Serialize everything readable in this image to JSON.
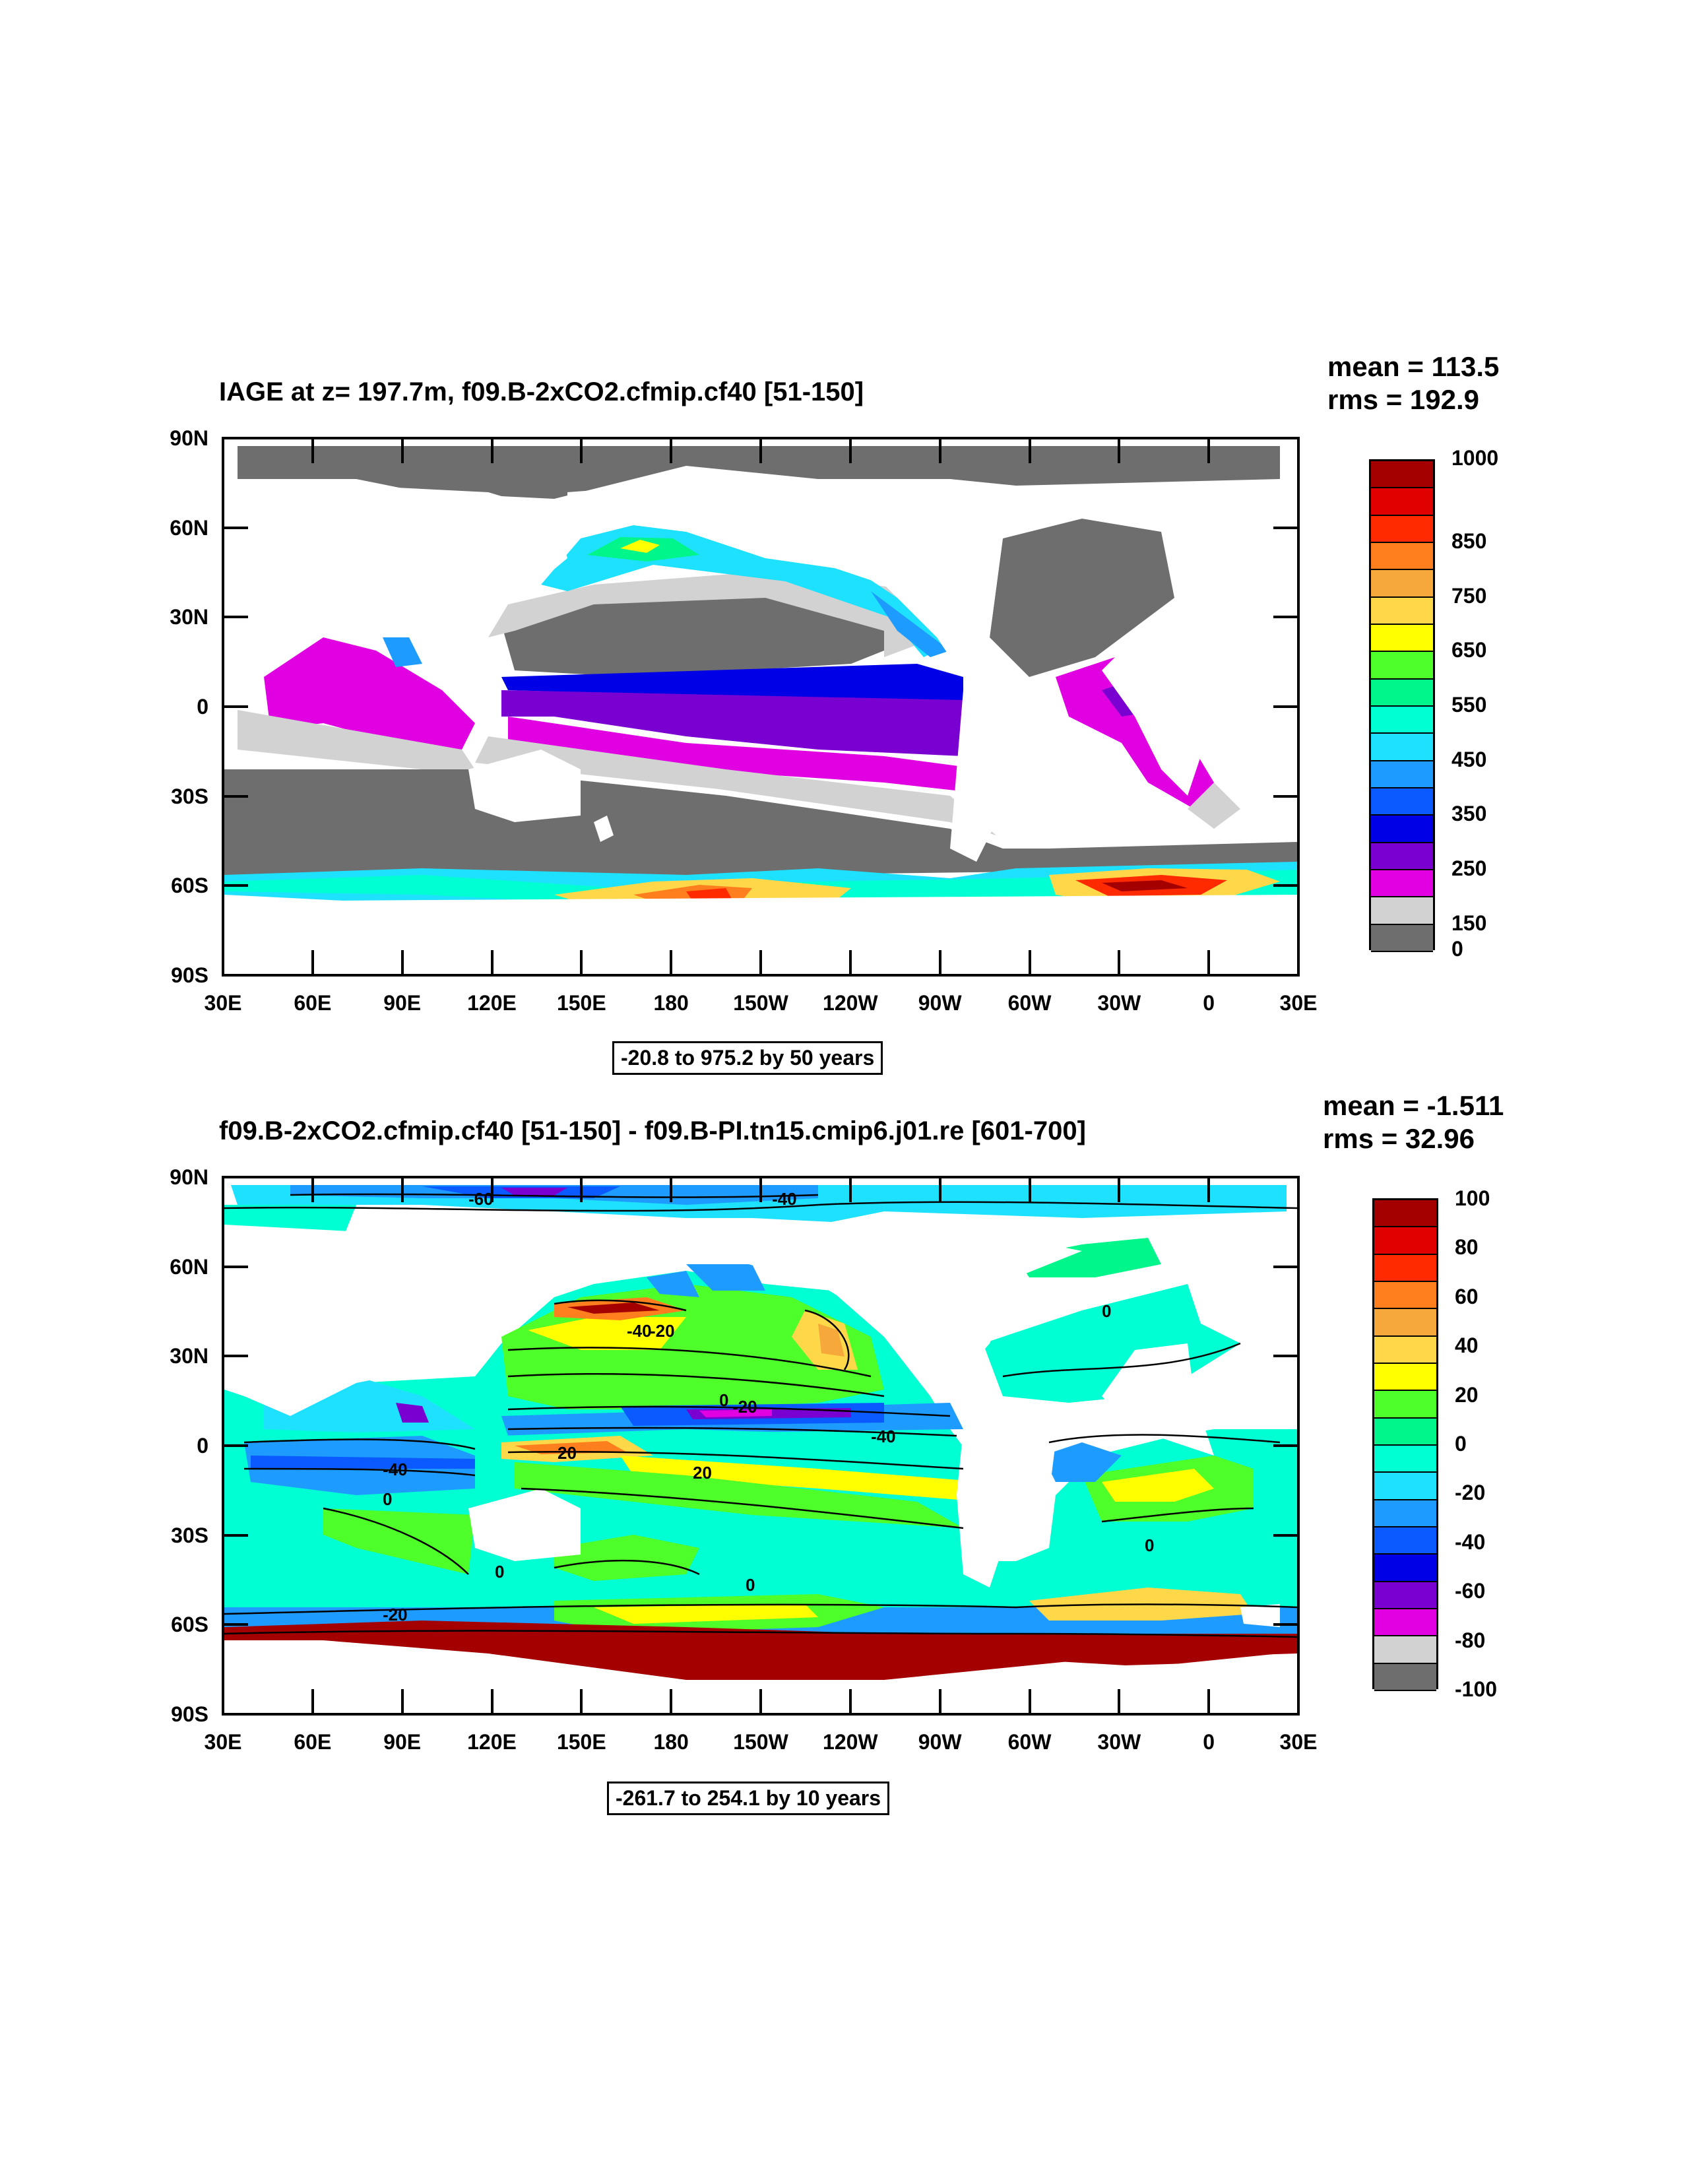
{
  "panel1": {
    "title": "IAGE at z= 197.7m, f09.B-2xCO2.cfmip.cf40 [51-150]",
    "mean": "mean = 113.5",
    "rms": "rms = 192.9",
    "range": "-20.8 to 975.2 by 50 years",
    "colorbar_labels": [
      "1000",
      "850",
      "750",
      "650",
      "550",
      "450",
      "350",
      "250",
      "150",
      "0"
    ],
    "colorbar_colors": [
      "#a50000",
      "#e10000",
      "#ff2a00",
      "#ff7f1e",
      "#f7a83a",
      "#ffd84a",
      "#ffff00",
      "#4eff2a",
      "#00f58a",
      "#00ffd2",
      "#1ee1ff",
      "#1e9bff",
      "#0a5aff",
      "#0000e6",
      "#7a00d2",
      "#e100e1",
      "#d2d2d2",
      "#6e6e6e"
    ]
  },
  "panel2": {
    "title": "f09.B-2xCO2.cfmip.cf40 [51-150] - f09.B-PI.tn15.cmip6.j01.re [601-700]",
    "mean": "mean = -1.511",
    "rms": "rms = 32.96",
    "range": "-261.7 to 254.1 by 10 years",
    "colorbar_labels": [
      "100",
      "80",
      "60",
      "40",
      "20",
      "0",
      "-20",
      "-40",
      "-60",
      "-80",
      "-100"
    ],
    "colorbar_colors": [
      "#a50000",
      "#e10000",
      "#ff2a00",
      "#ff7f1e",
      "#f7a83a",
      "#ffd84a",
      "#ffff00",
      "#4eff2a",
      "#00f58a",
      "#00ffd2",
      "#1ee1ff",
      "#1e9bff",
      "#0a5aff",
      "#0000e6",
      "#7a00d2",
      "#e100e1",
      "#d2d2d2",
      "#6e6e6e"
    ],
    "contour_labels": [
      "-60",
      "-40",
      "0",
      "-40",
      "-20",
      "0",
      "20",
      "-20",
      "-40",
      "20",
      "-40",
      "0",
      "0",
      "0",
      "0",
      "-20"
    ]
  },
  "axes": {
    "y_ticks": [
      "90N",
      "60N",
      "30N",
      "0",
      "30S",
      "60S",
      "90S"
    ],
    "x_ticks": [
      "30E",
      "60E",
      "90E",
      "120E",
      "150E",
      "180",
      "150W",
      "120W",
      "90W",
      "60W",
      "30W",
      "0",
      "30E"
    ]
  }
}
